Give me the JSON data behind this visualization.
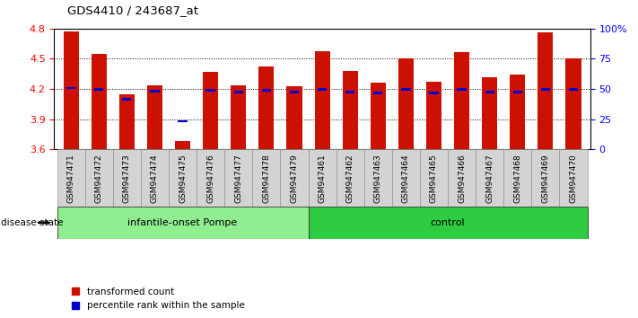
{
  "title": "GDS4410 / 243687_at",
  "samples": [
    "GSM947471",
    "GSM947472",
    "GSM947473",
    "GSM947474",
    "GSM947475",
    "GSM947476",
    "GSM947477",
    "GSM947478",
    "GSM947479",
    "GSM947461",
    "GSM947462",
    "GSM947463",
    "GSM947464",
    "GSM947465",
    "GSM947466",
    "GSM947467",
    "GSM947468",
    "GSM947469",
    "GSM947470"
  ],
  "transformed_count": [
    4.77,
    4.55,
    4.15,
    4.24,
    3.68,
    4.37,
    4.24,
    4.42,
    4.23,
    4.58,
    4.38,
    4.26,
    4.5,
    4.27,
    4.57,
    4.32,
    4.34,
    4.76,
    4.5
  ],
  "percentile_rank": [
    4.21,
    4.2,
    4.1,
    4.18,
    3.88,
    4.19,
    4.17,
    4.19,
    4.17,
    4.2,
    4.17,
    4.16,
    4.2,
    4.16,
    4.2,
    4.17,
    4.17,
    4.2,
    4.2
  ],
  "groups": [
    {
      "label": "infantile-onset Pompe",
      "start": 0,
      "end": 9,
      "color": "#90EE90"
    },
    {
      "label": "control",
      "start": 9,
      "end": 19,
      "color": "#2ECC40"
    }
  ],
  "ylim_left": [
    3.6,
    4.8
  ],
  "yticks_left": [
    3.6,
    3.9,
    4.2,
    4.5,
    4.8
  ],
  "ylim_right": [
    0,
    100
  ],
  "yticks_right": [
    0,
    25,
    50,
    75,
    100
  ],
  "yticklabels_right": [
    "0",
    "25",
    "50",
    "75",
    "100%"
  ],
  "bar_color": "#CC1100",
  "percentile_color": "#0000CC",
  "bar_width": 0.55,
  "baseline": 3.6,
  "disease_state_label": "disease state",
  "legend_items": [
    {
      "label": "transformed count",
      "color": "#CC1100"
    },
    {
      "label": "percentile rank within the sample",
      "color": "#0000CC"
    }
  ]
}
